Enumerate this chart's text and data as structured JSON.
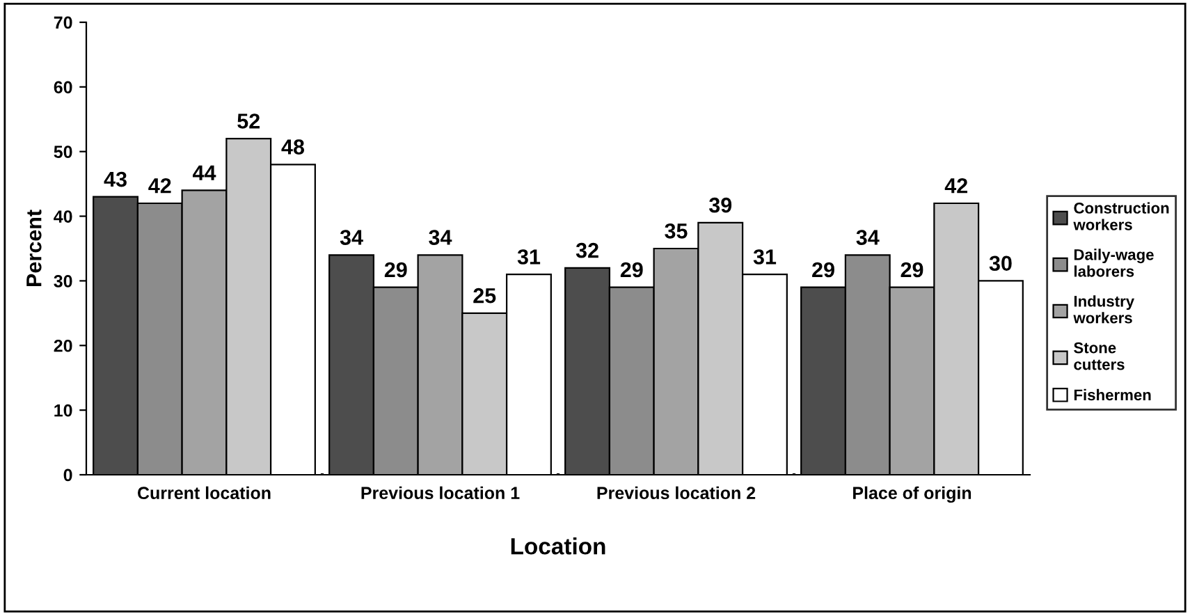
{
  "chart_data": {
    "type": "bar",
    "xlabel": "Location",
    "ylabel": "Percent",
    "categories": [
      "Current location",
      "Previous location 1",
      "Previous location 2",
      "Place of origin"
    ],
    "series": [
      {
        "name": "Construction workers",
        "color": "#4d4d4d",
        "values": [
          43,
          34,
          32,
          29
        ]
      },
      {
        "name": "Daily-wage laborers",
        "color": "#8c8c8c",
        "values": [
          42,
          29,
          29,
          34
        ]
      },
      {
        "name": "Industry workers",
        "color": "#a3a3a3",
        "values": [
          44,
          34,
          35,
          29
        ]
      },
      {
        "name": "Stone cutters",
        "color": "#c8c8c8",
        "values": [
          52,
          25,
          39,
          42
        ]
      },
      {
        "name": "Fishermen",
        "color": "#ffffff",
        "values": [
          48,
          31,
          31,
          30
        ]
      }
    ],
    "ylim": [
      0,
      70
    ],
    "yticks": [
      0,
      10,
      20,
      30,
      40,
      50,
      60,
      70
    ],
    "grid": false,
    "legend": "right",
    "data_labels": true
  }
}
